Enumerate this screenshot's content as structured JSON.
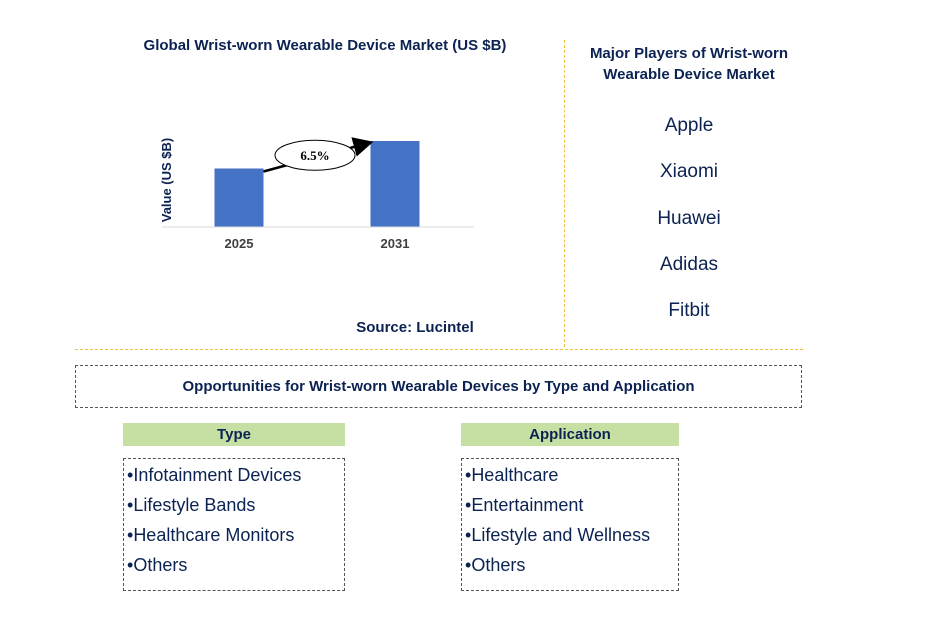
{
  "chart_data": {
    "type": "bar",
    "title": "Global Wrist-worn Wearable Device Market (US $B)",
    "categories": [
      "2025",
      "2031"
    ],
    "values": [
      1.0,
      1.47
    ],
    "ylabel": "Value (US $B)",
    "xlabel": "",
    "annotation": "6.5%",
    "bar_color": "#4472c4",
    "source": "Source: Lucintel"
  },
  "players": {
    "title": "Major Players of Wrist-worn Wearable Device Market",
    "items": [
      "Apple",
      "Xiaomi",
      "Huawei",
      "Adidas",
      "Fitbit"
    ]
  },
  "opportunities": {
    "title": "Opportunities for Wrist-worn Wearable Devices by Type and Application",
    "type": {
      "header": "Type",
      "items": [
        "Infotainment Devices",
        "Lifestyle Bands",
        "Healthcare Monitors",
        "Others"
      ]
    },
    "application": {
      "header": "Application",
      "items": [
        "Healthcare",
        "Entertainment",
        "Lifestyle and Wellness",
        "Others"
      ]
    }
  },
  "colors": {
    "text": "#0b2252",
    "header_fill": "#c6e0a4",
    "divider": "#f0c040"
  }
}
